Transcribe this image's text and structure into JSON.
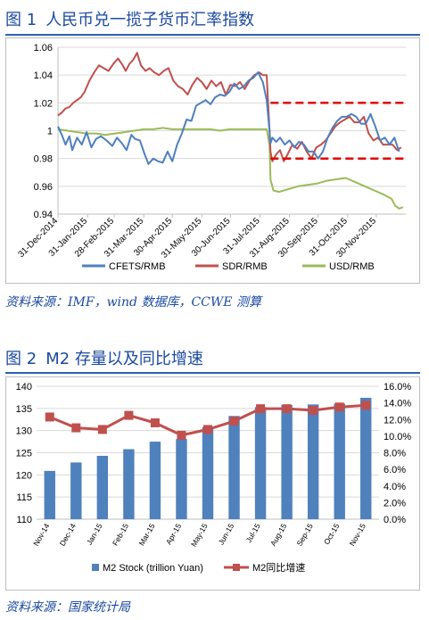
{
  "figure1": {
    "number": "图 1",
    "title": "人民币兑一揽子货币汇率指数",
    "source": "资料来源：IMF，wind 数据库，CCWE 测算"
  },
  "figure2": {
    "number": "图 2",
    "title": "M2 存量以及同比增速",
    "source": "资料来源：国家统计局"
  },
  "colors": {
    "title_blue": "#1b4aa0",
    "cfets": "#4f7fc0",
    "sdr": "#c0504d",
    "usd": "#9bbb59",
    "dashed": "#e00000",
    "bar": "#4f81bd",
    "growth_line": "#c0504d"
  },
  "chart_data": [
    {
      "type": "line",
      "xlabel": "",
      "ylabel": "",
      "ylim": [
        0.94,
        1.06
      ],
      "yticks": [
        0.94,
        0.96,
        0.98,
        1,
        1.02,
        1.04,
        1.06
      ],
      "xlim": [
        "2014-12-31",
        "2015-12-31"
      ],
      "xticks": [
        "31-Dec-2014",
        "31-Jan-2015",
        "28-Feb-2015",
        "31-Mar-2015",
        "30-Apr-2015",
        "31-May-2015",
        "30-Jun-2015",
        "31-Jul-2015",
        "31-Aug-2015",
        "30-Sep-2015",
        "31-Oct-2015",
        "30-Nov-2015"
      ],
      "legend_position": "bottom",
      "series": [
        {
          "name": "CFETS/RMB",
          "key": "cfets",
          "x": [
            "2014-12-31",
            "2015-01-04",
            "2015-01-08",
            "2015-01-12",
            "2015-01-15",
            "2015-01-20",
            "2015-01-25",
            "2015-01-30",
            "2015-02-04",
            "2015-02-09",
            "2015-02-14",
            "2015-02-20",
            "2015-02-26",
            "2015-03-03",
            "2015-03-08",
            "2015-03-13",
            "2015-03-18",
            "2015-03-22",
            "2015-03-27",
            "2015-04-01",
            "2015-04-05",
            "2015-04-10",
            "2015-04-15",
            "2015-04-20",
            "2015-04-25",
            "2015-04-30",
            "2015-05-05",
            "2015-05-10",
            "2015-05-15",
            "2015-05-20",
            "2015-05-25",
            "2015-05-30",
            "2015-06-04",
            "2015-06-09",
            "2015-06-14",
            "2015-06-19",
            "2015-06-24",
            "2015-06-29",
            "2015-07-04",
            "2015-07-09",
            "2015-07-14",
            "2015-07-19",
            "2015-07-24",
            "2015-07-29",
            "2015-08-03",
            "2015-08-07",
            "2015-08-10",
            "2015-08-11",
            "2015-08-13",
            "2015-08-17",
            "2015-08-21",
            "2015-08-26",
            "2015-08-31",
            "2015-09-05",
            "2015-09-10",
            "2015-09-15",
            "2015-09-20",
            "2015-09-25",
            "2015-09-30",
            "2015-10-05",
            "2015-10-10",
            "2015-10-15",
            "2015-10-20",
            "2015-10-25",
            "2015-10-30",
            "2015-11-04",
            "2015-11-09",
            "2015-11-14",
            "2015-11-19",
            "2015-11-24",
            "2015-11-29",
            "2015-12-04",
            "2015-12-09",
            "2015-12-14",
            "2015-12-19",
            "2015-12-24"
          ],
          "y": [
            1.003,
            0.997,
            0.99,
            0.996,
            0.986,
            0.995,
            0.99,
            0.999,
            0.988,
            0.994,
            0.996,
            0.993,
            0.989,
            0.995,
            0.991,
            0.986,
            0.997,
            0.994,
            0.993,
            0.983,
            0.976,
            0.98,
            0.978,
            0.977,
            0.985,
            0.978,
            0.99,
            0.998,
            1.008,
            1.007,
            1.018,
            1.02,
            1.022,
            1.019,
            1.024,
            1.026,
            1.025,
            1.028,
            1.034,
            1.03,
            1.032,
            1.036,
            1.038,
            1.042,
            1.035,
            1.022,
            1.0,
            0.991,
            0.995,
            0.992,
            0.995,
            0.99,
            0.993,
            0.988,
            0.992,
            0.99,
            0.985,
            0.985,
            0.98,
            0.985,
            0.995,
            1.002,
            1.007,
            1.01,
            1.01,
            1.012,
            1.01,
            1.005,
            1.005,
            1.012,
            1.003,
            0.993,
            0.995,
            0.99,
            0.995,
            0.985
          ]
        },
        {
          "name": "SDR/RMB",
          "key": "sdr",
          "x": [
            "2014-12-31",
            "2015-01-04",
            "2015-01-08",
            "2015-01-12",
            "2015-01-16",
            "2015-01-20",
            "2015-01-24",
            "2015-01-28",
            "2015-02-02",
            "2015-02-07",
            "2015-02-12",
            "2015-02-17",
            "2015-02-22",
            "2015-02-27",
            "2015-03-04",
            "2015-03-09",
            "2015-03-12",
            "2015-03-16",
            "2015-03-20",
            "2015-03-24",
            "2015-03-28",
            "2015-04-02",
            "2015-04-06",
            "2015-04-11",
            "2015-04-16",
            "2015-04-21",
            "2015-04-26",
            "2015-05-01",
            "2015-05-06",
            "2015-05-11",
            "2015-05-16",
            "2015-05-21",
            "2015-05-26",
            "2015-05-31",
            "2015-06-05",
            "2015-06-10",
            "2015-06-15",
            "2015-06-20",
            "2015-06-25",
            "2015-06-30",
            "2015-07-05",
            "2015-07-10",
            "2015-07-15",
            "2015-07-20",
            "2015-07-25",
            "2015-07-30",
            "2015-08-03",
            "2015-08-07",
            "2015-08-10",
            "2015-08-11",
            "2015-08-13",
            "2015-08-17",
            "2015-08-21",
            "2015-08-25",
            "2015-08-29",
            "2015-09-03",
            "2015-09-08",
            "2015-09-13",
            "2015-09-18",
            "2015-09-23",
            "2015-09-28",
            "2015-10-03",
            "2015-10-08",
            "2015-10-13",
            "2015-10-18",
            "2015-10-23",
            "2015-10-28",
            "2015-11-02",
            "2015-11-07",
            "2015-11-12",
            "2015-11-17",
            "2015-11-22",
            "2015-11-27",
            "2015-12-02",
            "2015-12-07",
            "2015-12-12",
            "2015-12-17",
            "2015-12-22",
            "2015-12-26"
          ],
          "y": [
            1.011,
            1.013,
            1.016,
            1.017,
            1.02,
            1.022,
            1.024,
            1.028,
            1.036,
            1.042,
            1.047,
            1.045,
            1.043,
            1.048,
            1.052,
            1.047,
            1.043,
            1.048,
            1.051,
            1.056,
            1.047,
            1.043,
            1.045,
            1.042,
            1.04,
            1.043,
            1.045,
            1.036,
            1.032,
            1.03,
            1.026,
            1.033,
            1.038,
            1.035,
            1.03,
            1.036,
            1.032,
            1.035,
            1.026,
            1.033,
            1.032,
            1.035,
            1.03,
            1.036,
            1.04,
            1.042,
            1.04,
            1.04,
            1.0,
            0.985,
            0.978,
            0.983,
            0.986,
            0.978,
            0.983,
            0.99,
            0.987,
            0.992,
            0.985,
            0.98,
            0.988,
            0.99,
            0.993,
            0.998,
            1.003,
            1.006,
            1.008,
            1.01,
            1.006,
            1.006,
            1.01,
            0.998,
            0.993,
            0.995,
            0.99,
            0.99,
            0.99,
            0.986,
            0.988
          ]
        },
        {
          "name": "USD/RMB",
          "key": "usd",
          "x": [
            "2014-12-31",
            "2015-01-10",
            "2015-01-20",
            "2015-01-30",
            "2015-02-09",
            "2015-02-19",
            "2015-03-01",
            "2015-03-11",
            "2015-03-21",
            "2015-03-31",
            "2015-04-10",
            "2015-04-20",
            "2015-04-30",
            "2015-05-10",
            "2015-05-20",
            "2015-05-30",
            "2015-06-09",
            "2015-06-19",
            "2015-06-29",
            "2015-07-09",
            "2015-07-19",
            "2015-07-29",
            "2015-08-07",
            "2015-08-10",
            "2015-08-11",
            "2015-08-14",
            "2015-08-20",
            "2015-08-30",
            "2015-09-09",
            "2015-09-19",
            "2015-09-29",
            "2015-10-09",
            "2015-10-19",
            "2015-10-29",
            "2015-11-08",
            "2015-11-18",
            "2015-11-28",
            "2015-12-08",
            "2015-12-16",
            "2015-12-20",
            "2015-12-24",
            "2015-12-28"
          ],
          "y": [
            1.001,
            1.0,
            0.999,
            0.998,
            0.998,
            0.997,
            0.998,
            0.999,
            1.0,
            1.001,
            1.001,
            1.002,
            1.001,
            1.001,
            1.001,
            1.001,
            1.001,
            1.0,
            1.001,
            1.001,
            1.001,
            1.001,
            1.001,
            0.99,
            0.965,
            0.957,
            0.956,
            0.958,
            0.96,
            0.961,
            0.962,
            0.964,
            0.965,
            0.966,
            0.963,
            0.96,
            0.957,
            0.954,
            0.951,
            0.946,
            0.944,
            0.945
          ]
        },
        {
          "name": "",
          "key": "upper-dashed",
          "style": "dashed",
          "x": [
            "2015-08-11",
            "2015-12-31"
          ],
          "y": [
            1.02,
            1.02
          ]
        },
        {
          "name": "",
          "key": "lower-dashed",
          "style": "dashed",
          "x": [
            "2015-08-11",
            "2015-12-31"
          ],
          "y": [
            0.98,
            0.98
          ]
        }
      ]
    },
    {
      "type": "bar",
      "categories": [
        "Nov-14",
        "Dec-14",
        "Jan-15",
        "Feb-15",
        "Mar-15",
        "Apr-15",
        "May-15",
        "Jun-15",
        "Jul-15",
        "Aug-15",
        "Sep-15",
        "Oct-15",
        "Nov-15"
      ],
      "xlabel": "",
      "ylabel": "",
      "ylim": [
        110,
        140
      ],
      "yticks": [
        110,
        115,
        120,
        125,
        130,
        135,
        140
      ],
      "y2lim": [
        0,
        16
      ],
      "y2ticks": [
        "0.0%",
        "2.0%",
        "4.0%",
        "6.0%",
        "8.0%",
        "10.0%",
        "12.0%",
        "14.0%",
        "16.0%"
      ],
      "legend_position": "bottom",
      "series": [
        {
          "name": "M2 Stock (trillion Yuan)",
          "type": "bar",
          "axis": "left",
          "values": [
            120.9,
            122.8,
            124.3,
            125.8,
            127.5,
            128.1,
            130.8,
            133.3,
            135.3,
            135.8,
            135.9,
            136.1,
            137.4
          ]
        },
        {
          "name": "M2同比增速",
          "type": "line",
          "axis": "right",
          "unit": "%",
          "values": [
            12.3,
            11.0,
            10.8,
            12.5,
            11.6,
            10.1,
            10.8,
            11.8,
            13.3,
            13.3,
            13.1,
            13.5,
            13.7
          ]
        }
      ]
    }
  ]
}
